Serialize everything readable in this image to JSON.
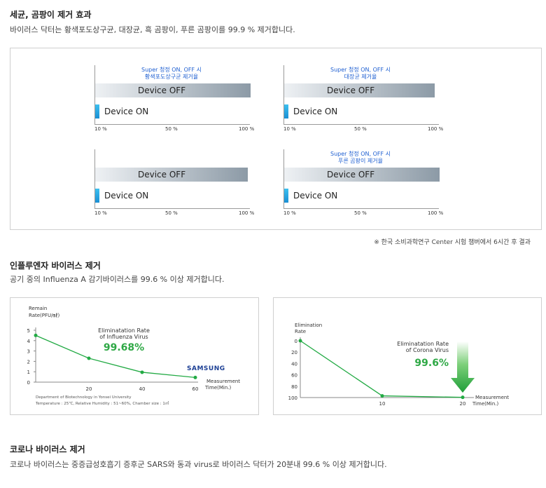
{
  "section1": {
    "title": "세균, 곰팡이 제거 효과",
    "desc": "바이러스 닥터는 황색포도상구균, 대장균, 흑 곰팡이, 푸른 곰팡이를 99.9 % 제거합니다."
  },
  "bar_ticks": [
    "10 %",
    "50 %",
    "100 %"
  ],
  "footnote": "※ 한국 소비과학연구 Center 시험 챔버에서 6시간 후 결과",
  "section2": {
    "title": "인플루엔자 바이러스 제거",
    "desc": "공기 중의 Influenza A 감기바이러스를 99.6 % 이상 제거합니다."
  },
  "section3": {
    "title": "코로나 바이러스 제거",
    "desc": "코로나 바이러스는 중증급성호흡기 증후군 SARS와 동과 virus로 바이러스 닥터가 20분내 99.6 % 이상 제거합니다."
  },
  "chart_data": [
    {
      "type": "bar",
      "note": [
        "Super 청정 ON, OFF 시",
        "황색포도상구균 제거율"
      ],
      "categories": [
        "Device OFF",
        "Device ON"
      ],
      "values": [
        100,
        0
      ],
      "xlim": [
        0,
        100
      ],
      "ticks": [
        "10 %",
        "50 %",
        "100 %"
      ]
    },
    {
      "type": "bar",
      "note": [
        "Super 청정 ON, OFF 시",
        "대장균 제거율"
      ],
      "categories": [
        "Device OFF",
        "Device ON"
      ],
      "values": [
        97,
        0
      ],
      "xlim": [
        0,
        100
      ],
      "ticks": [
        "10 %",
        "50 %",
        "100 %"
      ]
    },
    {
      "type": "bar",
      "note": [],
      "categories": [
        "Device OFF",
        "Device ON"
      ],
      "values": [
        98,
        0
      ],
      "xlim": [
        0,
        100
      ],
      "ticks": [
        "10 %",
        "50 %",
        "100 %"
      ]
    },
    {
      "type": "bar",
      "note": [
        "Super 청정 ON, OFF 시",
        "푸른 곰팡이 제거율"
      ],
      "categories": [
        "Device OFF",
        "Device ON"
      ],
      "values": [
        100,
        0
      ],
      "xlim": [
        0,
        100
      ],
      "ticks": [
        "10 %",
        "50 %",
        "100 %"
      ]
    },
    {
      "type": "line",
      "ylabel": [
        "Remain",
        "Rate(PFU/㎖)"
      ],
      "xlabel": [
        "Measurement",
        "Time(Min.)"
      ],
      "x": [
        0,
        20,
        40,
        60
      ],
      "y": [
        4.5,
        2.3,
        0.95,
        0.45
      ],
      "ylim": [
        0,
        5
      ],
      "xlim": [
        0,
        60
      ],
      "yticks": [
        0,
        1,
        2,
        3,
        4,
        5
      ],
      "xticks": [
        20,
        40,
        60
      ],
      "annotation": [
        "Eliminatation Rate",
        "of Influenza Virus"
      ],
      "annotation_value": "99.68%",
      "brand": "SAMSUNG",
      "footer": [
        "Department of Biotechnology in Yonsei University",
        "Temperature : 25℃, Relative Humidity : 51~60%, Chamber size : 1㎥"
      ],
      "color": "#22aa44"
    },
    {
      "type": "line",
      "ylabel": [
        "Elimination",
        "Rate"
      ],
      "xlabel": [
        "Measurement",
        "Time(Min.)"
      ],
      "x": [
        0,
        10,
        20
      ],
      "y": [
        0,
        97,
        99.6
      ],
      "ylim": [
        0,
        100
      ],
      "inverted_y": true,
      "yticks": [
        0,
        20,
        40,
        60,
        80,
        100
      ],
      "xticks": [
        10,
        20
      ],
      "annotation": [
        "Eliminatation Rate",
        "of Corona Virus"
      ],
      "annotation_value": "99.6%",
      "color": "#22aa44"
    }
  ]
}
